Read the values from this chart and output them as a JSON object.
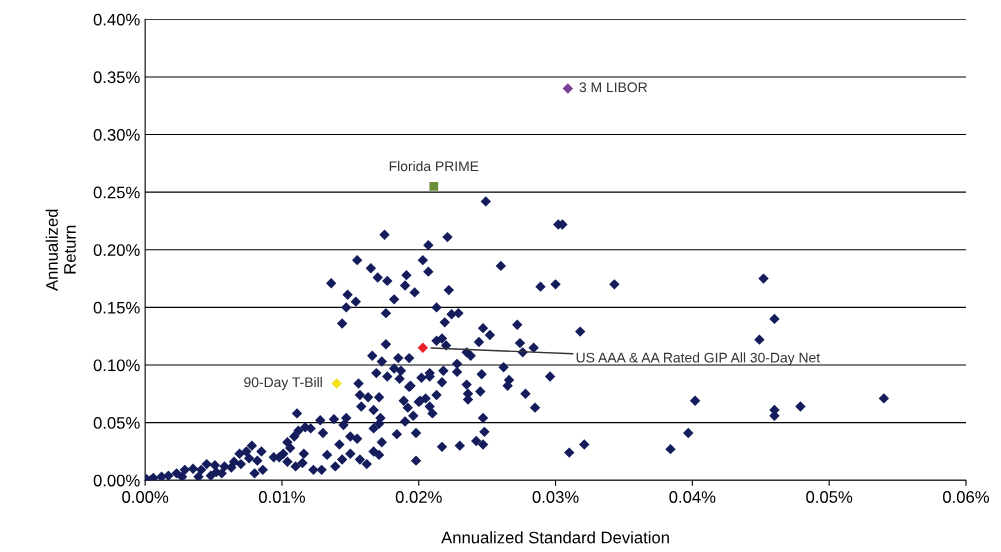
{
  "chart_data": {
    "type": "scatter",
    "xlabel": "Annualized Standard Deviation",
    "ylabel": "Annualized\nReturn",
    "xlim": [
      0,
      0.06
    ],
    "ylim": [
      0,
      0.4
    ],
    "xticks": [
      {
        "value": 0,
        "label": "0.00%"
      },
      {
        "value": 0.01,
        "label": "0.01%"
      },
      {
        "value": 0.02,
        "label": "0.02%"
      },
      {
        "value": 0.03,
        "label": "0.03%"
      },
      {
        "value": 0.04,
        "label": "0.04%"
      },
      {
        "value": 0.05,
        "label": "0.05%"
      },
      {
        "value": 0.06,
        "label": "0.06%"
      }
    ],
    "yticks": [
      {
        "value": 0,
        "label": "0.00%"
      },
      {
        "value": 0.05,
        "label": "0.05%"
      },
      {
        "value": 0.1,
        "label": "0.10%"
      },
      {
        "value": 0.15,
        "label": "0.15%"
      },
      {
        "value": 0.2,
        "label": "0.20%"
      },
      {
        "value": 0.25,
        "label": "0.25%"
      },
      {
        "value": 0.3,
        "label": "0.30%"
      },
      {
        "value": 0.35,
        "label": "0.35%"
      },
      {
        "value": 0.4,
        "label": "0.40%"
      }
    ],
    "grid": "y",
    "legend": false,
    "marker": "diamond",
    "series": [
      {
        "color": "#141c5c",
        "x": [
          0.0249,
          0.0302,
          0.0305,
          0.0175,
          0.0221,
          0.0207,
          0.026,
          0.0155,
          0.0165,
          0.0203,
          0.0207,
          0.017,
          0.0177,
          0.0191,
          0.0136,
          0.019,
          0.0197,
          0.0148,
          0.0154,
          0.0147,
          0.0182,
          0.0176,
          0.0144,
          0.0176,
          0.0166,
          0.0173,
          0.0185,
          0.0193,
          0.0169,
          0.0177,
          0.0182,
          0.0187,
          0.0186,
          0.0202,
          0.0208,
          0.0156,
          0.0157,
          0.0163,
          0.0171,
          0.0158,
          0.0167,
          0.0193,
          0.0189,
          0.0192,
          0.0201,
          0.0205,
          0.0196,
          0.0172,
          0.0171,
          0.019,
          0.0167,
          0.0198,
          0.0184,
          0.0173,
          0.0167,
          0.0171,
          0.0198,
          0.0111,
          0.0128,
          0.0138,
          0.0147,
          0.0145,
          0.013,
          0.015,
          0.0155,
          0.0142,
          0.0133,
          0.015,
          0.0144,
          0.0157,
          0.0162,
          0.0139,
          0.0123,
          0.0129,
          0.0117,
          0.0121,
          0.0112,
          0.0109,
          0.0104,
          0.0106,
          0.0101,
          0.0116,
          0.0115,
          0.011,
          0.0104,
          0.0094,
          0.0098,
          0.008,
          0.0086,
          0.0078,
          0.0074,
          0.0069,
          0.0076,
          0.0082,
          0.0065,
          0.0063,
          0.0058,
          0.0051,
          0.0052,
          0.0045,
          0.0041,
          0.0035,
          0.0029,
          0.0023,
          0.0017,
          0.0012,
          0.0006,
          0.0001,
          0.0004,
          0.0056,
          0.0048,
          0.0039,
          0.0027,
          0.007,
          0.0085,
          0.0222,
          0.0289,
          0.03,
          0.0343,
          0.0213,
          0.0224,
          0.0229,
          0.0219,
          0.0247,
          0.0252,
          0.0272,
          0.0318,
          0.0213,
          0.0217,
          0.022,
          0.0244,
          0.0274,
          0.0276,
          0.0284,
          0.0235,
          0.0238,
          0.0228,
          0.0218,
          0.0228,
          0.0262,
          0.0296,
          0.0208,
          0.0217,
          0.0246,
          0.0235,
          0.0266,
          0.0265,
          0.0278,
          0.0194,
          0.0213,
          0.0236,
          0.0236,
          0.0245,
          0.02,
          0.0208,
          0.021,
          0.0285,
          0.0247,
          0.0248,
          0.0242,
          0.0247,
          0.023,
          0.0217,
          0.031,
          0.0321,
          0.0452,
          0.046,
          0.0449,
          0.0402,
          0.0479,
          0.046,
          0.046,
          0.054,
          0.0397,
          0.0384
        ],
        "values": [
          0.242,
          0.222,
          0.222,
          0.213,
          0.211,
          0.204,
          0.186,
          0.191,
          0.184,
          0.191,
          0.181,
          0.176,
          0.173,
          0.178,
          0.171,
          0.169,
          0.163,
          0.161,
          0.155,
          0.15,
          0.157,
          0.145,
          0.136,
          0.118,
          0.108,
          0.103,
          0.106,
          0.106,
          0.093,
          0.09,
          0.097,
          0.095,
          0.088,
          0.089,
          0.093,
          0.084,
          0.074,
          0.072,
          0.072,
          0.064,
          0.061,
          0.081,
          0.069,
          0.063,
          0.069,
          0.071,
          0.056,
          0.054,
          0.049,
          0.051,
          0.045,
          0.041,
          0.04,
          0.033,
          0.025,
          0.022,
          0.017,
          0.058,
          0.052,
          0.053,
          0.054,
          0.048,
          0.041,
          0.038,
          0.036,
          0.031,
          0.022,
          0.023,
          0.018,
          0.018,
          0.014,
          0.012,
          0.009,
          0.009,
          0.046,
          0.045,
          0.043,
          0.038,
          0.033,
          0.028,
          0.023,
          0.023,
          0.015,
          0.012,
          0.016,
          0.02,
          0.02,
          0.006,
          0.009,
          0.03,
          0.025,
          0.023,
          0.019,
          0.017,
          0.016,
          0.011,
          0.012,
          0.013,
          0.007,
          0.014,
          0.009,
          0.01,
          0.009,
          0.006,
          0.004,
          0.003,
          0.002,
          0.001,
          0.0,
          0.006,
          0.004,
          0.003,
          0.003,
          0.014,
          0.025,
          0.165,
          0.168,
          0.17,
          0.17,
          0.15,
          0.144,
          0.145,
          0.137,
          0.132,
          0.126,
          0.135,
          0.129,
          0.121,
          0.123,
          0.117,
          0.12,
          0.119,
          0.111,
          0.115,
          0.111,
          0.108,
          0.101,
          0.095,
          0.094,
          0.098,
          0.09,
          0.09,
          0.085,
          0.092,
          0.083,
          0.087,
          0.082,
          0.075,
          0.082,
          0.074,
          0.075,
          0.07,
          0.077,
          0.068,
          0.064,
          0.058,
          0.063,
          0.054,
          0.042,
          0.034,
          0.031,
          0.03,
          0.029,
          0.024,
          0.031,
          0.175,
          0.14,
          0.122,
          0.069,
          0.064,
          0.061,
          0.056,
          0.071,
          0.041,
          0.027
        ]
      },
      {
        "name": "3 M LIBOR",
        "color": "#7b3f97",
        "x": [
          0.0309
        ],
        "values": [
          0.34
        ]
      },
      {
        "name": "Florida PRIME",
        "color": "#6a8f3a",
        "marker": "square",
        "x": [
          0.0211
        ],
        "values": [
          0.255
        ]
      },
      {
        "name": "90-Day T-Bill",
        "color": "#f5e11a",
        "x": [
          0.014
        ],
        "values": [
          0.084
        ]
      },
      {
        "name": "US AAA & AA Rated GIP All 30-Day Net",
        "color": "#e8202a",
        "x": [
          0.0203
        ],
        "values": [
          0.115
        ]
      }
    ]
  }
}
